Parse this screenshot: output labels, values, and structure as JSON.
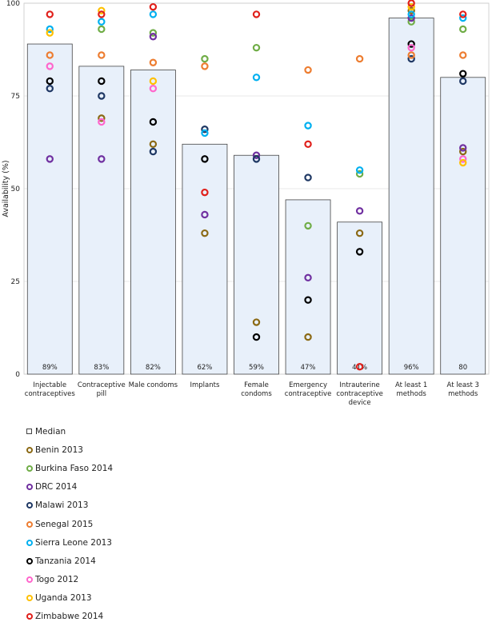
{
  "chart_data": {
    "type": "bar",
    "ylabel": "Availability (%)",
    "ylim": [
      0,
      100
    ],
    "yticks": [
      0,
      25,
      50,
      75,
      100
    ],
    "grid": true,
    "legend_placement": "bottom-left",
    "categories": [
      [
        "Injectable",
        "contraceptives"
      ],
      [
        "Contraceptive",
        "pill"
      ],
      [
        "Male condoms"
      ],
      [
        "Implants"
      ],
      [
        "Female",
        "condoms"
      ],
      [
        "Emergency",
        "contraceptive"
      ],
      [
        "Intrauterine",
        "contraceptive",
        "device"
      ],
      [
        "At least 1",
        "methods"
      ],
      [
        "At least 3",
        "methods"
      ]
    ],
    "median": {
      "name": "Median",
      "values": [
        89,
        83,
        82,
        62,
        59,
        47,
        41,
        96,
        80
      ],
      "labels": [
        "89%",
        "83%",
        "82%",
        "62%",
        "59%",
        "47%",
        "41%",
        "96%",
        "80"
      ]
    },
    "series": [
      {
        "name": "Benin 2013",
        "color": "#8B6914",
        "values": [
          null,
          69,
          62,
          38,
          14,
          10,
          38,
          98,
          60
        ]
      },
      {
        "name": "Burkina Faso 2014",
        "color": "#70AD47",
        "values": [
          null,
          93,
          92,
          85,
          88,
          40,
          54,
          95,
          93
        ]
      },
      {
        "name": "DRC 2014",
        "color": "#7030A0",
        "values": [
          58,
          58,
          91,
          43,
          59,
          26,
          44,
          96,
          61
        ]
      },
      {
        "name": "Malawi 2013",
        "color": "#1F3864",
        "values": [
          77,
          75,
          60,
          66,
          58,
          53,
          null,
          85,
          79
        ]
      },
      {
        "name": "Senegal 2015",
        "color": "#ED7D31",
        "values": [
          86,
          86,
          84,
          83,
          null,
          82,
          85,
          86,
          86
        ]
      },
      {
        "name": "Sierra Leone 2013",
        "color": "#00B0F0",
        "values": [
          93,
          95,
          97,
          65,
          80,
          67,
          55,
          97,
          96
        ]
      },
      {
        "name": "Tanzania 2014",
        "color": "#000000",
        "values": [
          79,
          79,
          68,
          58,
          10,
          20,
          33,
          89,
          81
        ]
      },
      {
        "name": "Togo 2012",
        "color": "#FF66CC",
        "values": [
          83,
          68,
          77,
          null,
          null,
          null,
          null,
          88,
          58
        ]
      },
      {
        "name": "Uganda 2013",
        "color": "#FFC000",
        "values": [
          92,
          98,
          79,
          null,
          null,
          null,
          null,
          99,
          57
        ]
      },
      {
        "name": "Zimbabwe 2014",
        "color": "#E0201B",
        "values": [
          97,
          97,
          99,
          49,
          97,
          62,
          2,
          100,
          97
        ]
      }
    ]
  }
}
